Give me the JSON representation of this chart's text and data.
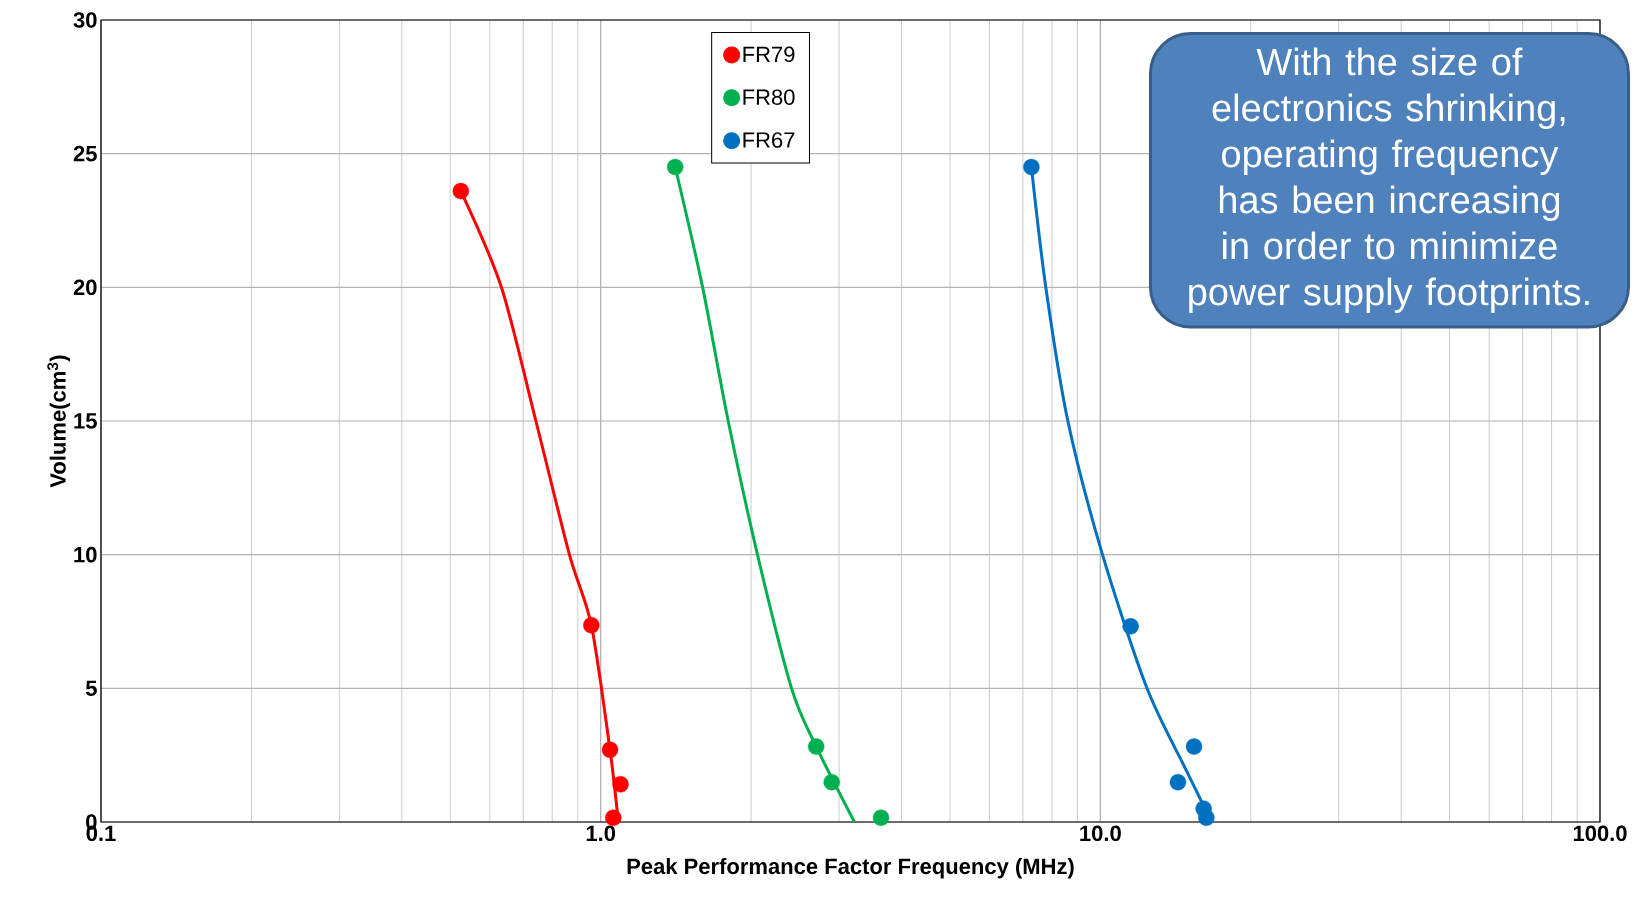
{
  "chart_data": {
    "type": "scatter",
    "xlabel": "Peak Performance Factor Frequency (MHz)",
    "ylabel": "Volume(cm$^{3}$)",
    "log": "x",
    "grid": true,
    "legend": "top",
    "xlim": [
      0.1,
      100
    ],
    "ylim": [
      0,
      30
    ],
    "xticks": [
      {
        "value": 0.1,
        "label": "0.1"
      },
      {
        "value": 1,
        "label": "1.0"
      },
      {
        "value": 10,
        "label": "10.0"
      },
      {
        "value": 100,
        "label": "100.0"
      }
    ],
    "yticks": [
      0,
      5,
      10,
      15,
      20,
      25,
      30
    ],
    "annotations": [
      "With the size of electronics shrinking, operating frequency has been increasing in order to minimize power supply footprints."
    ],
    "series": [
      {
        "name": "FR79",
        "marker": "circle",
        "color": "#ff0000",
        "x": [
          0.525,
          0.958,
          1.044,
          1.096,
          1.06
        ],
        "values": [
          23.6,
          7.36,
          2.7,
          1.41,
          0.16
        ]
      },
      {
        "name": "FR80",
        "marker": "circle",
        "color": "#00b050",
        "x": [
          1.41,
          2.7,
          2.9,
          3.64
        ],
        "values": [
          24.5,
          2.82,
          1.49,
          0.16
        ]
      },
      {
        "name": "FR67",
        "marker": "circle",
        "color": "#0070c0",
        "x": [
          7.28,
          11.5,
          15.4,
          14.3,
          16.1,
          16.3
        ],
        "values": [
          24.5,
          7.32,
          2.82,
          1.49,
          0.5,
          0.16
        ]
      },
      {
        "type": "line",
        "marker": "none",
        "color": "#ff0000",
        "x": [
          0.525,
          0.633,
          0.742,
          0.866,
          0.958,
          1.044,
          1.085
        ],
        "values": [
          23.6,
          20,
          15,
          10,
          7.36,
          2.7,
          0
        ]
      },
      {
        "type": "line",
        "marker": "none",
        "color": "#00b050",
        "x": [
          1.41,
          1.6,
          1.8,
          2.06,
          2.41,
          2.7,
          3.22
        ],
        "values": [
          24.5,
          20,
          15,
          10,
          5,
          2.82,
          0
        ]
      },
      {
        "type": "line",
        "marker": "none",
        "color": "#0070c0",
        "x": [
          7.28,
          7.78,
          8.61,
          10.1,
          12.4,
          14.8,
          16.7
        ],
        "values": [
          24.5,
          20,
          15,
          10,
          5,
          2,
          0
        ]
      }
    ]
  }
}
